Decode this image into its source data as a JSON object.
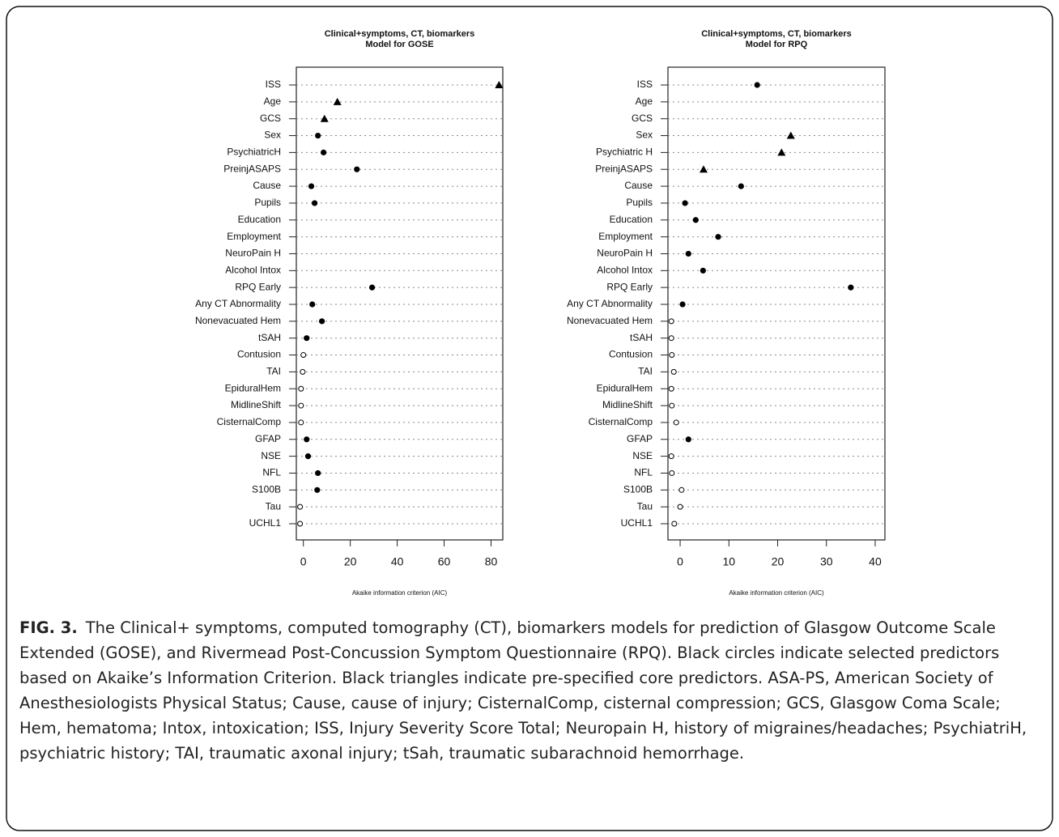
{
  "figure_label": "FIG. 3.",
  "caption": "The Clinical+ symptoms, computed tomography (CT), biomarkers models for prediction of Glasgow Outcome Scale Extended (GOSE), and Rivermead Post-Concussion Symptom Questionnaire (RPQ). Black circles indicate selected predictors based on Akaike’s Information Criterion. Black triangles indicate pre-specified core predictors. ASA-PS, American Society of Anesthesiologists Physical Status; Cause, cause of injury; CisternalComp, cisternal compression; GCS, Glasgow Coma Scale; Hem, hematoma; Intox, intoxication; ISS, Injury Severity Score Total; Neuropain H, history of migraines/headaches; PsychiatriH, psychiatric history; TAI, traumatic axonal injury; tSah, traumatic subarachnoid hemorrhage.",
  "chart_data": [
    {
      "type": "dot",
      "title": [
        "Clinical+symptoms, CT, biomarkers",
        "Model for GOSE"
      ],
      "x_label": "Akaike information criterion (AIC)",
      "categories": [
        "ISS",
        "Age",
        "GCS",
        "Sex",
        "PsychiatricH",
        "PreinjASAPS",
        "Cause",
        "Pupils",
        "Education",
        "Employment",
        "NeuroPain H",
        "Alcohol Intox",
        "RPQ Early",
        "Any CT Abnormality",
        "Nonevacuated Hem",
        "tSAH",
        "Contusion",
        "TAI",
        "EpiduralHem",
        "MidlineShift",
        "CisternalComp",
        "GFAP",
        "NSE",
        "NFL",
        "S100B",
        "Tau",
        "UCHL1"
      ],
      "values": [
        83.4,
        14.5,
        9,
        6.2,
        8.6,
        22.8,
        3.4,
        4.8,
        null,
        null,
        null,
        null,
        29.3,
        3.8,
        7.9,
        1.4,
        0,
        -0.3,
        -1,
        -1,
        -1,
        1.4,
        2,
        6.2,
        5.9,
        -1.4,
        -1.4
      ],
      "markers": [
        "triangle",
        "triangle",
        "triangle",
        "circle",
        "circle",
        "circle",
        "circle",
        "circle",
        null,
        null,
        null,
        null,
        "circle",
        "circle",
        "circle",
        "circle",
        "open-circle",
        "open-circle",
        "open-circle",
        "open-circle",
        "open-circle",
        "circle",
        "circle",
        "circle",
        "circle",
        "open-circle",
        "open-circle"
      ],
      "color": "#000000",
      "xlim": [
        -3,
        85
      ],
      "xticks": [
        0,
        20,
        40,
        60,
        80
      ],
      "grid": true
    },
    {
      "type": "dot",
      "title": [
        "Clinical+symptoms, CT, biomarkers",
        "Model for RPQ"
      ],
      "x_label": "Akaike information criterion (AIC)",
      "categories": [
        "ISS",
        "Age",
        "GCS",
        "Sex",
        "Psychiatric H",
        "PreinjASAPS",
        "Cause",
        "Pupils",
        "Education",
        "Employment",
        "NeuroPain H",
        "Alcohol Intox",
        "RPQ Early",
        "Any CT Abnormality",
        "Nonevacuated Hem",
        "tSAH",
        "Contusion",
        "TAI",
        "EpiduralHem",
        "MidlineShift",
        "CisternalComp",
        "GFAP",
        "NSE",
        "NFL",
        "S100B",
        "Tau",
        "UCHL1"
      ],
      "values": [
        15.8,
        null,
        null,
        22.7,
        20.8,
        4.8,
        12.5,
        1,
        3.2,
        7.8,
        1.7,
        4.7,
        35,
        0.5,
        -1.8,
        -1.8,
        -1.7,
        -1.3,
        -1.8,
        -1.7,
        -0.8,
        1.7,
        -1.8,
        -1.7,
        0.3,
        0,
        -1.2
      ],
      "markers": [
        "circle",
        null,
        null,
        "triangle",
        "triangle",
        "triangle",
        "circle",
        "circle",
        "circle",
        "circle",
        "circle",
        "circle",
        "circle",
        "circle",
        "open-circle",
        "open-circle",
        "open-circle",
        "open-circle",
        "open-circle",
        "open-circle",
        "open-circle",
        "circle",
        "open-circle",
        "open-circle",
        "open-circle",
        "open-circle",
        "open-circle"
      ],
      "color": "#000000",
      "xlim": [
        -2.5,
        42
      ],
      "xticks": [
        0,
        10,
        20,
        30,
        40
      ],
      "grid": true
    }
  ]
}
